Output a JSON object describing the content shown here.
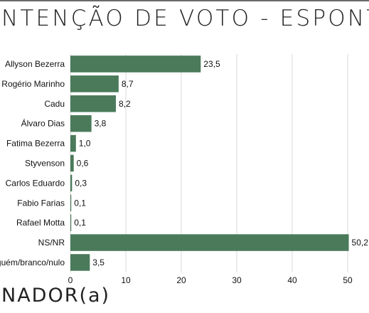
{
  "header": {
    "title": "NTENÇÃO DE VOTO - ESPONT"
  },
  "footer": {
    "subtitle": "NADOR(a)"
  },
  "colors": {
    "bar": "#4a7a5a",
    "grid": "#d9d9d9",
    "text": "#111111"
  },
  "chart_data": {
    "type": "bar",
    "orientation": "horizontal",
    "categories": [
      "Allyson Bezerra",
      "Rogério Marinho",
      "Cadu",
      "Álvaro Dias",
      "Fatima Bezerra",
      "Styvenson",
      "Carlos Eduardo",
      "Fabio Farias",
      "Rafael Motta",
      "NS/NR",
      "Ninguém/branco/nulo"
    ],
    "values": [
      23.5,
      8.7,
      8.2,
      3.8,
      1.0,
      0.6,
      0.3,
      0.1,
      0.1,
      50.2,
      3.5
    ],
    "value_labels": [
      "23,5",
      "8,7",
      "8,2",
      "3,8",
      "1,0",
      "0,6",
      "0,3",
      "0,1",
      "0,1",
      "50,2",
      "3,5"
    ],
    "xlim": [
      0,
      50
    ],
    "xticks": [
      0,
      10,
      20,
      30,
      40,
      50
    ],
    "xtick_labels": [
      "0",
      "10",
      "20",
      "30",
      "40",
      "50"
    ],
    "grid": true
  }
}
